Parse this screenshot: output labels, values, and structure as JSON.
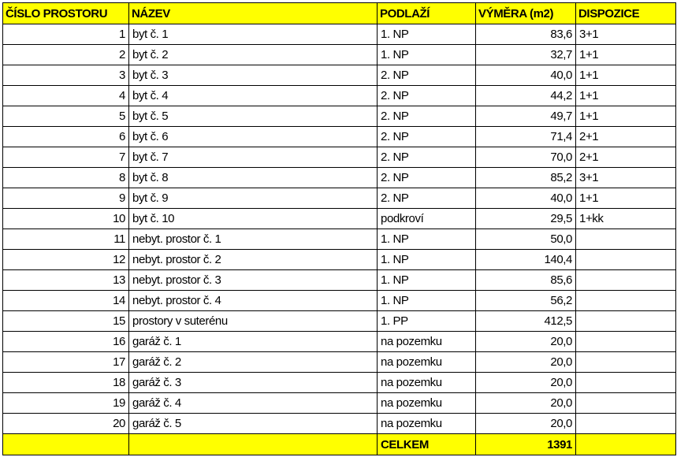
{
  "colors": {
    "header_bg": "#ffff00"
  },
  "headers": [
    "ČÍSLO PROSTORU",
    "NÁZEV",
    "PODLAŽÍ",
    "VÝMĚRA (m2)",
    "DISPOZICE"
  ],
  "rows": [
    [
      "1",
      "byt č. 1",
      "1. NP",
      "83,6",
      "3+1"
    ],
    [
      "2",
      "byt č. 2",
      "1. NP",
      "32,7",
      "1+1"
    ],
    [
      "3",
      "byt č. 3",
      "2. NP",
      "40,0",
      "1+1"
    ],
    [
      "4",
      "byt č. 4",
      "2. NP",
      "44,2",
      "1+1"
    ],
    [
      "5",
      "byt č. 5",
      "2. NP",
      "49,7",
      "1+1"
    ],
    [
      "6",
      "byt č. 6",
      "2. NP",
      "71,4",
      "2+1"
    ],
    [
      "7",
      "byt č. 7",
      "2. NP",
      "70,0",
      "2+1"
    ],
    [
      "8",
      "byt č. 8",
      "2. NP",
      "85,2",
      "3+1"
    ],
    [
      "9",
      "byt č. 9",
      "2. NP",
      "40,0",
      "1+1"
    ],
    [
      "10",
      "byt č. 10",
      "podkroví",
      "29,5",
      "1+kk"
    ],
    [
      "11",
      "nebyt. prostor č. 1",
      "1. NP",
      "50,0",
      ""
    ],
    [
      "12",
      "nebyt. prostor č. 2",
      "1. NP",
      "140,4",
      ""
    ],
    [
      "13",
      "nebyt. prostor č. 3",
      "1. NP",
      "85,6",
      ""
    ],
    [
      "14",
      "nebyt. prostor č. 4",
      "1. NP",
      "56,2",
      ""
    ],
    [
      "15",
      "prostory v suterénu",
      "1. PP",
      "412,5",
      ""
    ],
    [
      "16",
      "garáž č. 1",
      "na pozemku",
      "20,0",
      ""
    ],
    [
      "17",
      "garáž č. 2",
      "na pozemku",
      "20,0",
      ""
    ],
    [
      "18",
      "garáž č. 3",
      "na pozemku",
      "20,0",
      ""
    ],
    [
      "19",
      "garáž č. 4",
      "na pozemku",
      "20,0",
      ""
    ],
    [
      "20",
      "garáž č. 5",
      "na pozemku",
      "20,0",
      ""
    ]
  ],
  "total": {
    "label": "CELKEM",
    "value": "1391"
  }
}
